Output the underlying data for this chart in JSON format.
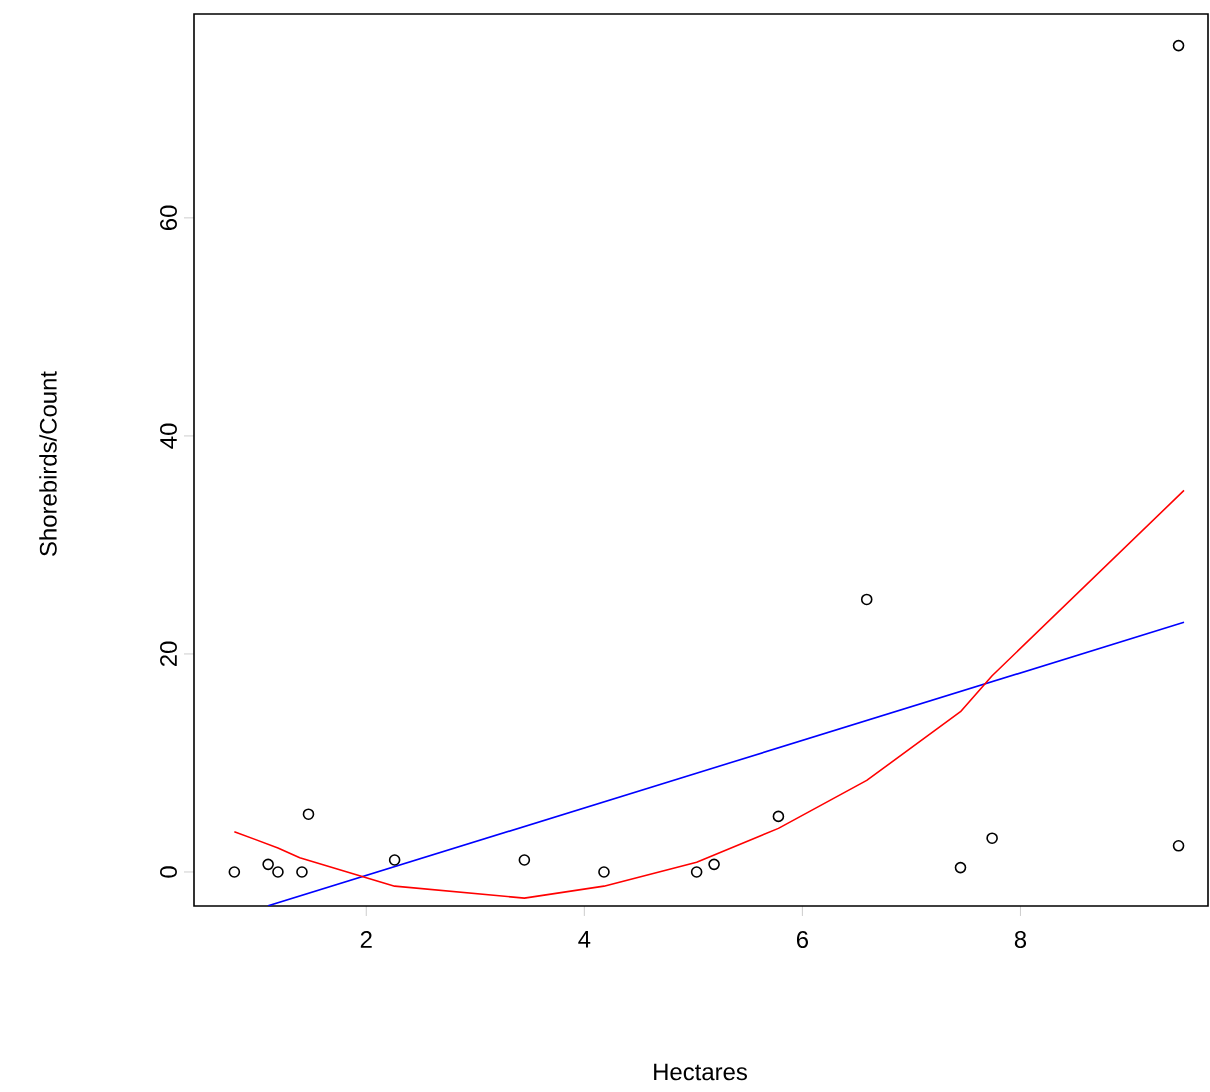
{
  "chart_data": {
    "type": "scatter",
    "xlabel": "Hectares",
    "ylabel": "Shorebirds/Count",
    "xlim": [
      0.42,
      9.72
    ],
    "ylim": [
      -3.12,
      78.7
    ],
    "xticks": [
      2,
      4,
      6,
      8
    ],
    "yticks": [
      0,
      20,
      40,
      60
    ],
    "grid": false,
    "series": [
      {
        "marker": "circle",
        "color": "#000000",
        "x": [
          0.79,
          1.1,
          1.19,
          1.41,
          1.47,
          2.26,
          3.45,
          4.18,
          5.03,
          5.19,
          5.78,
          6.59,
          7.45,
          7.74,
          9.45,
          9.45
        ],
        "values": [
          0,
          0.7,
          0,
          0,
          5.3,
          1.1,
          1.1,
          0,
          0,
          0.7,
          5.1,
          25,
          0.4,
          3.1,
          75.8,
          2.4
        ]
      },
      {
        "type": "line",
        "marker": "none",
        "color": "#0000ff",
        "x": [
          1.1,
          9.5
        ],
        "values": [
          -3.1,
          22.9
        ]
      },
      {
        "type": "line",
        "marker": "none",
        "color": "#ff0000",
        "x": [
          0.79,
          1.19,
          1.39,
          2.26,
          3.45,
          4.18,
          5.03,
          5.78,
          6.59,
          7.45,
          7.74,
          9.5
        ],
        "values": [
          3.7,
          2.2,
          1.3,
          -1.3,
          -2.4,
          -1.3,
          0.9,
          4.0,
          8.4,
          14.7,
          18.0,
          35.0
        ]
      }
    ]
  }
}
